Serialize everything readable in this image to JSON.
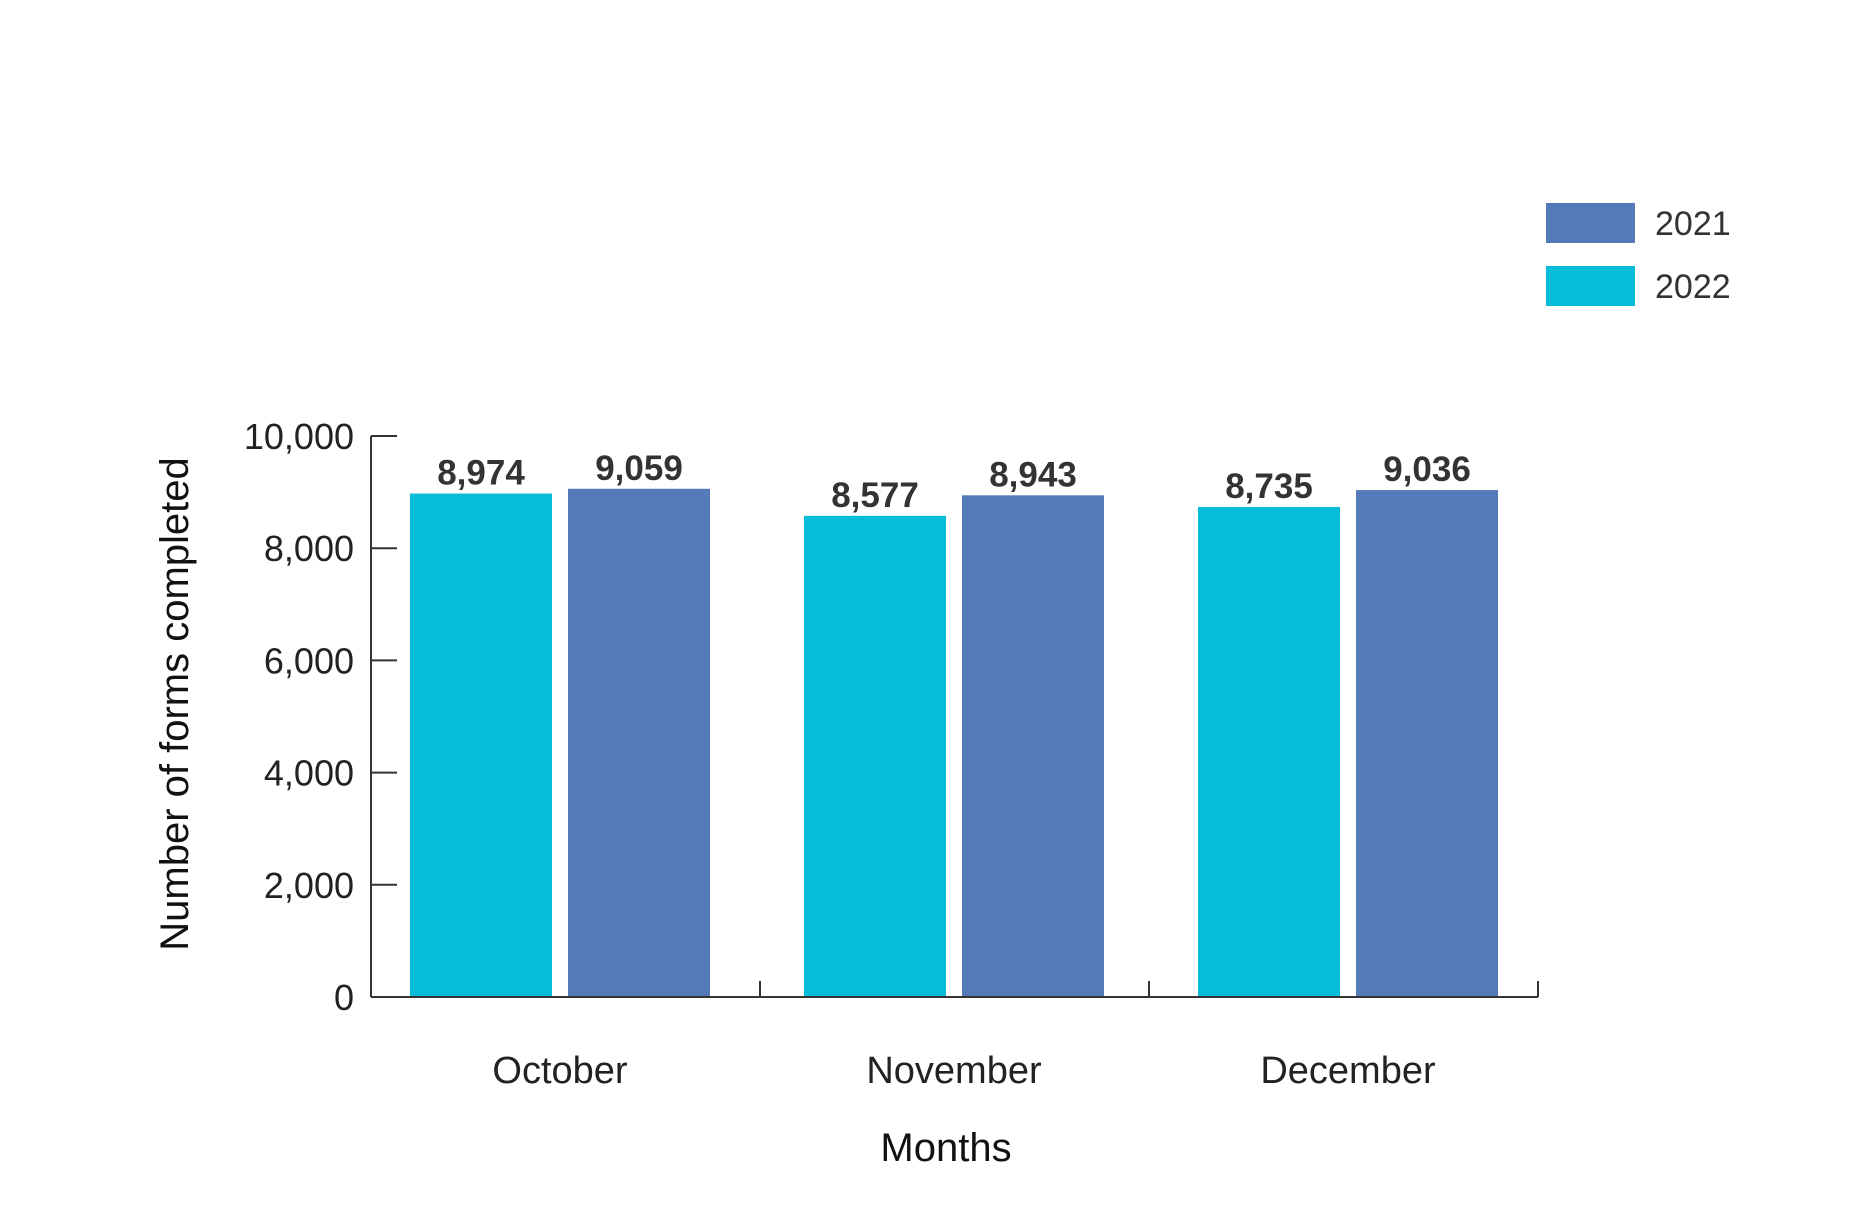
{
  "colors": {
    "series_2021": "#557AB9",
    "series_2022": "#05BCD9",
    "axis": "#333333"
  },
  "chart_data": {
    "type": "bar",
    "title": "",
    "xlabel": "Months",
    "ylabel": "Number of forms completed",
    "categories": [
      "October",
      "November",
      "December"
    ],
    "ylim": [
      0,
      10000
    ],
    "yticks": [
      "0",
      "2,000",
      "4,000",
      "6,000",
      "8,000",
      "10,000"
    ],
    "yticks_values": [
      0,
      2000,
      4000,
      6000,
      8000,
      10000
    ],
    "grid": false,
    "legend_position": "top-right",
    "series": [
      {
        "name": "2022",
        "values": [
          8974,
          8577,
          8735
        ],
        "labels": [
          "8,974",
          "8,577",
          "8,735"
        ]
      },
      {
        "name": "2021",
        "values": [
          9059,
          8943,
          9036
        ],
        "labels": [
          "9,059",
          "8,943",
          "9,036"
        ]
      }
    ],
    "legend": [
      "2021",
      "2022"
    ]
  }
}
